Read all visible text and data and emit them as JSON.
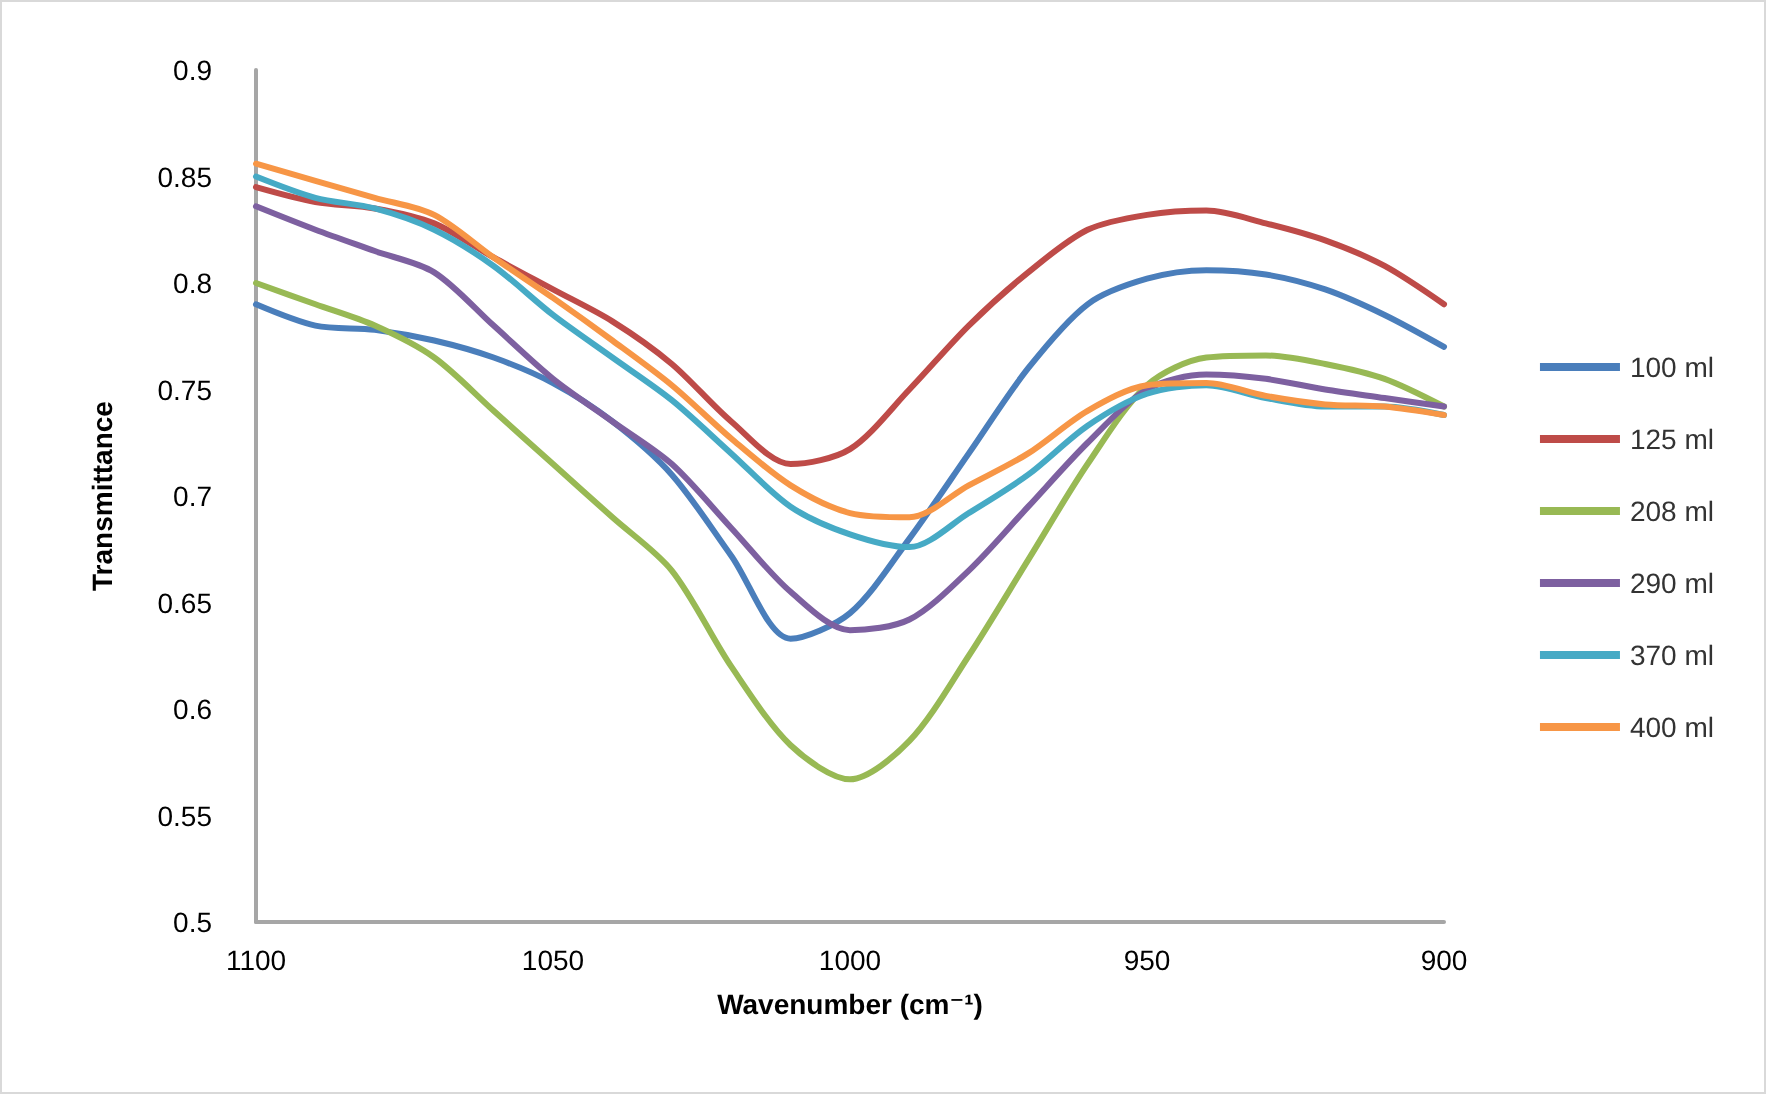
{
  "chart_data": {
    "type": "line",
    "xlabel": "Wavenumber (cm⁻¹)",
    "ylabel": "Transmittance",
    "x": [
      1100,
      1090,
      1080,
      1070,
      1060,
      1050,
      1040,
      1030,
      1020,
      1010,
      1000,
      990,
      980,
      970,
      960,
      950,
      940,
      930,
      920,
      910,
      900
    ],
    "series": [
      {
        "name": "100 ml",
        "color": "#4a7ebb",
        "values": [
          0.79,
          0.78,
          0.778,
          0.773,
          0.765,
          0.753,
          0.735,
          0.71,
          0.672,
          0.633,
          0.645,
          0.68,
          0.72,
          0.76,
          0.79,
          0.802,
          0.806,
          0.804,
          0.797,
          0.785,
          0.77
        ]
      },
      {
        "name": "125 ml",
        "color": "#be4b48",
        "values": [
          0.845,
          0.838,
          0.835,
          0.828,
          0.812,
          0.797,
          0.782,
          0.762,
          0.735,
          0.715,
          0.722,
          0.75,
          0.78,
          0.805,
          0.825,
          0.832,
          0.834,
          0.828,
          0.82,
          0.808,
          0.79
        ]
      },
      {
        "name": "208 ml",
        "color": "#98b954",
        "values": [
          0.8,
          0.79,
          0.78,
          0.765,
          0.74,
          0.715,
          0.69,
          0.665,
          0.62,
          0.583,
          0.567,
          0.585,
          0.625,
          0.67,
          0.715,
          0.752,
          0.765,
          0.766,
          0.762,
          0.755,
          0.742
        ]
      },
      {
        "name": "290 ml",
        "color": "#7d60a0",
        "values": [
          0.836,
          0.825,
          0.815,
          0.805,
          0.78,
          0.755,
          0.735,
          0.715,
          0.685,
          0.655,
          0.637,
          0.642,
          0.665,
          0.695,
          0.725,
          0.75,
          0.757,
          0.755,
          0.75,
          0.746,
          0.742
        ]
      },
      {
        "name": "370 ml",
        "color": "#46aac5",
        "values": [
          0.85,
          0.84,
          0.835,
          0.825,
          0.808,
          0.785,
          0.765,
          0.745,
          0.72,
          0.695,
          0.682,
          0.676,
          0.692,
          0.71,
          0.733,
          0.748,
          0.752,
          0.746,
          0.742,
          0.742,
          0.738
        ]
      },
      {
        "name": "400 ml",
        "color": "#f79646",
        "values": [
          0.856,
          0.848,
          0.84,
          0.832,
          0.812,
          0.793,
          0.773,
          0.752,
          0.727,
          0.705,
          0.692,
          0.69,
          0.705,
          0.72,
          0.74,
          0.752,
          0.753,
          0.747,
          0.743,
          0.742,
          0.738
        ]
      }
    ],
    "xlim": [
      1100,
      900
    ],
    "xticks": [
      1100,
      1050,
      1000,
      950,
      900
    ],
    "ylim": [
      0.5,
      0.9
    ],
    "yticks": [
      0.5,
      0.55,
      0.6,
      0.65,
      0.7,
      0.75,
      0.8,
      0.85,
      0.9
    ],
    "grid": false,
    "legend": "right",
    "marker": "none",
    "line_style": "solid"
  }
}
